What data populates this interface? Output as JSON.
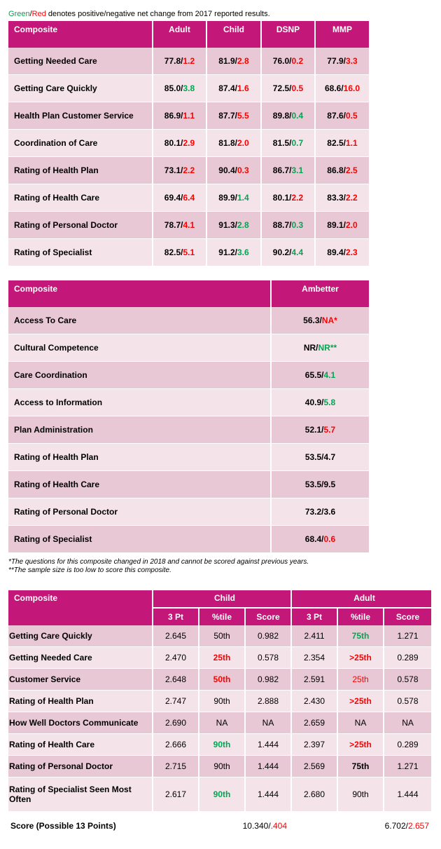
{
  "legend": {
    "green": "Green",
    "slash": "/",
    "red": "Red",
    "rest": " denotes positive/negative net change from 2017 reported results."
  },
  "table1": {
    "headers": [
      "Composite",
      "Adult",
      "Child",
      "DSNP",
      "MMP"
    ],
    "rows": [
      {
        "label": "Getting Needed Care",
        "cells": [
          [
            "77.8/",
            "1.2",
            "r"
          ],
          [
            "81.9/",
            "2.8",
            "r"
          ],
          [
            "76.0/",
            "0.2",
            "r"
          ],
          [
            "77.9/",
            "3.3",
            "r"
          ]
        ]
      },
      {
        "label": "Getting Care Quickly",
        "cells": [
          [
            "85.0/",
            "3.8",
            "g"
          ],
          [
            "87.4/",
            "1.6",
            "r"
          ],
          [
            "72.5/",
            "0.5",
            "r"
          ],
          [
            "68.6/",
            "16.0",
            "r"
          ]
        ]
      },
      {
        "label": "Health Plan Customer Service",
        "cells": [
          [
            "86.9/",
            "1.1",
            "r"
          ],
          [
            "87.7/",
            "5.5",
            "r"
          ],
          [
            "89.8/",
            "0.4",
            "g"
          ],
          [
            "87.6/",
            "0.5",
            "r"
          ]
        ]
      },
      {
        "label": "Coordination of Care",
        "cells": [
          [
            "80.1/",
            "2.9",
            "r"
          ],
          [
            "81.8/",
            "2.0",
            "r"
          ],
          [
            "81.5/",
            "0.7",
            "g"
          ],
          [
            "82.5/",
            "1.1",
            "r"
          ]
        ]
      },
      {
        "label": "Rating of Health Plan",
        "cells": [
          [
            "73.1/",
            "2.2",
            "r"
          ],
          [
            "90.4/",
            "0.3",
            "r"
          ],
          [
            "86.7/",
            "3.1",
            "g"
          ],
          [
            "86.8/",
            "2.5",
            "r"
          ]
        ]
      },
      {
        "label": "Rating of Health Care",
        "cells": [
          [
            "69.4/",
            "6.4",
            "r"
          ],
          [
            "89.9/",
            "1.4",
            "g"
          ],
          [
            "80.1/",
            "2.2",
            "r"
          ],
          [
            "83.3/",
            "2.2",
            "r"
          ]
        ]
      },
      {
        "label": "Rating of Personal Doctor",
        "cells": [
          [
            "78.7/",
            "4.1",
            "r"
          ],
          [
            "91.3/",
            "2.8",
            "g"
          ],
          [
            "88.7/",
            "0.3",
            "g"
          ],
          [
            "89.1/",
            "2.0",
            "r"
          ]
        ]
      },
      {
        "label": "Rating of Specialist",
        "cells": [
          [
            "82.5/",
            "5.1",
            "r"
          ],
          [
            "91.2/",
            "3.6",
            "g"
          ],
          [
            "90.2/",
            "4.4",
            "g"
          ],
          [
            "89.4/",
            "2.3",
            "r"
          ]
        ]
      }
    ]
  },
  "table2": {
    "headers": [
      "Composite",
      "Ambetter"
    ],
    "rows": [
      {
        "label": "Access To Care",
        "cell": [
          "56.3/",
          "NA*",
          "r"
        ]
      },
      {
        "label": "Cultural Competence",
        "cell": [
          "NR/",
          "NR**",
          "g"
        ]
      },
      {
        "label": "Care Coordination",
        "cell": [
          "65.5/",
          "4.1",
          "g"
        ]
      },
      {
        "label": "Access to Information",
        "cell": [
          "40.9/",
          "5.8",
          "g"
        ]
      },
      {
        "label": "Plan Administration",
        "cell": [
          "52.1/",
          "5.7",
          "r"
        ]
      },
      {
        "label": "Rating of Health Plan",
        "cell": [
          "53.5/4.7",
          "",
          ""
        ]
      },
      {
        "label": "Rating of Health Care",
        "cell": [
          "53.5/9.5",
          "",
          ""
        ]
      },
      {
        "label": "Rating of Personal Doctor",
        "cell": [
          "73.2/3.6",
          "",
          ""
        ]
      },
      {
        "label": "Rating of Specialist",
        "cell": [
          "68.4/",
          "0.6",
          "r"
        ]
      }
    ]
  },
  "notes": [
    "*The questions for this composite changed in 2018 and cannot be scored against previous years.",
    "**The sample size is too low to score this composite."
  ],
  "table3": {
    "header_composite": "Composite",
    "group_child": "Child",
    "group_adult": "Adult",
    "subheaders": [
      "3 Pt",
      "%tile",
      "Score",
      "3 Pt",
      "%tile",
      "Score"
    ],
    "rows": [
      {
        "label": "Getting Care Quickly",
        "cells": [
          [
            "2.645",
            ""
          ],
          [
            "50th",
            ""
          ],
          [
            "0.982",
            ""
          ],
          [
            "2.411",
            ""
          ],
          [
            "75th",
            "g"
          ],
          [
            "1.271",
            ""
          ]
        ]
      },
      {
        "label": "Getting Needed Care",
        "cells": [
          [
            "2.470",
            ""
          ],
          [
            "25th",
            "r"
          ],
          [
            "0.578",
            ""
          ],
          [
            "2.354",
            ""
          ],
          [
            ">25th",
            "r"
          ],
          [
            "0.289",
            ""
          ]
        ]
      },
      {
        "label": "Customer Service",
        "cells": [
          [
            "2.648",
            ""
          ],
          [
            "50th",
            "r"
          ],
          [
            "0.982",
            ""
          ],
          [
            "2.591",
            ""
          ],
          [
            "25th",
            "rn"
          ],
          [
            "0.578",
            ""
          ]
        ]
      },
      {
        "label": "Rating of Health Plan",
        "cells": [
          [
            "2.747",
            ""
          ],
          [
            "90th",
            ""
          ],
          [
            "2.888",
            ""
          ],
          [
            "2.430",
            ""
          ],
          [
            ">25th",
            "r"
          ],
          [
            "0.578",
            ""
          ]
        ]
      },
      {
        "label": "How Well Doctors Communicate",
        "cells": [
          [
            "2.690",
            ""
          ],
          [
            "NA",
            ""
          ],
          [
            "NA",
            ""
          ],
          [
            "2.659",
            ""
          ],
          [
            "NA",
            ""
          ],
          [
            "NA",
            ""
          ]
        ]
      },
      {
        "label": "Rating of Health Care",
        "cells": [
          [
            "2.666",
            ""
          ],
          [
            "90th",
            "g"
          ],
          [
            "1.444",
            ""
          ],
          [
            "2.397",
            ""
          ],
          [
            ">25th",
            "r"
          ],
          [
            "0.289",
            ""
          ]
        ]
      },
      {
        "label": "Rating of Personal Doctor",
        "cells": [
          [
            "2.715",
            ""
          ],
          [
            "90th",
            ""
          ],
          [
            "1.444",
            ""
          ],
          [
            "2.569",
            ""
          ],
          [
            "75th",
            "b"
          ],
          [
            "1.271",
            ""
          ]
        ]
      },
      {
        "label": "Rating of Specialist Seen Most Often",
        "cells": [
          [
            "2.617",
            ""
          ],
          [
            "90th",
            "g"
          ],
          [
            "1.444",
            ""
          ],
          [
            "2.680",
            ""
          ],
          [
            "90th",
            ""
          ],
          [
            "1.444",
            ""
          ]
        ]
      }
    ],
    "score_row": {
      "label": "Score (Possible 13 Points)",
      "child_base": "10.340/",
      "child_change": ".404",
      "adult_base": "6.702/",
      "adult_change": "2.657"
    }
  }
}
